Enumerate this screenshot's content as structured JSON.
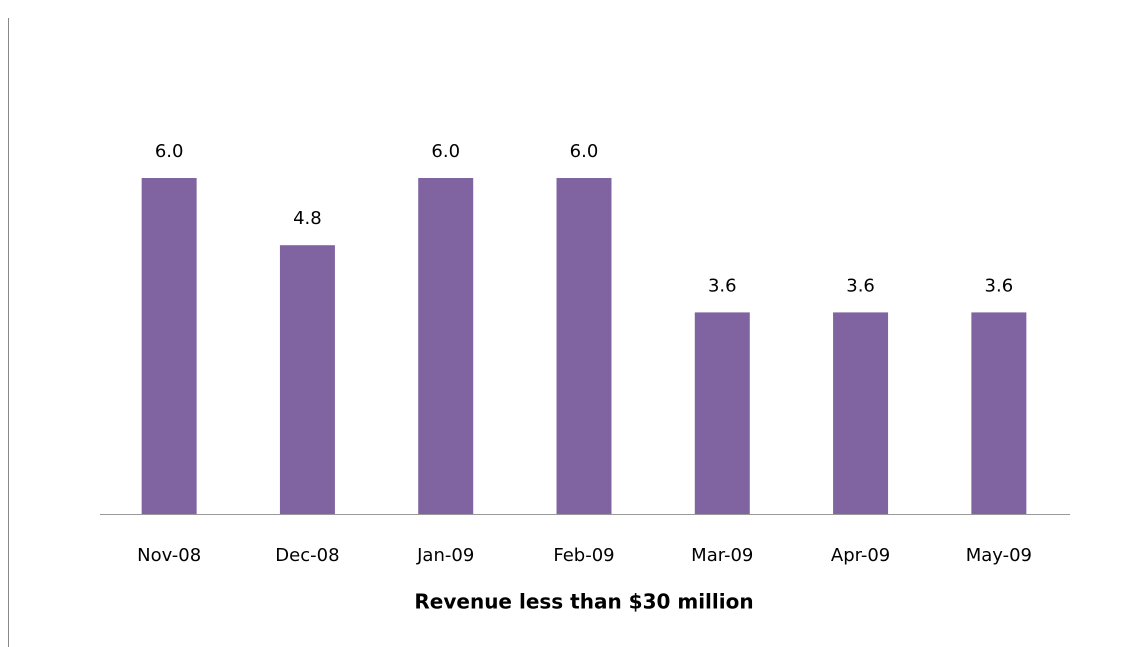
{
  "chart_data": {
    "type": "bar",
    "x_label": "Revenue less than $30 million",
    "categories": [
      "Nov-08",
      "Dec-08",
      "Jan-09",
      "Feb-09",
      "Mar-09",
      "Apr-09",
      "May-09"
    ],
    "values": [
      6.0,
      4.8,
      6.0,
      6.0,
      3.6,
      3.6,
      3.6
    ],
    "value_labels": [
      "6.0",
      "4.8",
      "6.0",
      "6.0",
      "3.6",
      "3.6",
      "3.6"
    ],
    "color": "#8064a2"
  }
}
